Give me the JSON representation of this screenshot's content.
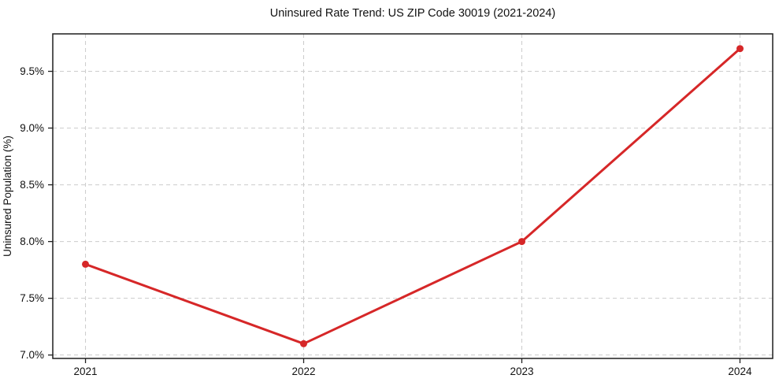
{
  "chart_data": {
    "type": "line",
    "title": "Uninsured Rate Trend: US ZIP Code 30019 (2021-2024)",
    "xlabel": "",
    "ylabel": "Uninsured Population (%)",
    "x": [
      2021,
      2022,
      2023,
      2024
    ],
    "values": [
      7.8,
      7.1,
      8.0,
      9.7
    ],
    "x_tick_labels": [
      "2021",
      "2022",
      "2023",
      "2024"
    ],
    "y_ticks": [
      7.0,
      7.5,
      8.0,
      8.5,
      9.0,
      9.5
    ],
    "y_tick_labels": [
      "7.0%",
      "7.5%",
      "8.0%",
      "8.5%",
      "9.0%",
      "9.5%"
    ],
    "xlim": [
      2020.85,
      2024.15
    ],
    "ylim": [
      6.97,
      9.83
    ],
    "grid": true,
    "grid_style": "dashed",
    "legend": false,
    "colors": {
      "line": "#d62728",
      "marker": "#d62728",
      "grid": "#cccccc",
      "spine": "#1f1f1f",
      "tick": "#1f1f1f",
      "text": "#111111",
      "background": "#ffffff"
    }
  }
}
